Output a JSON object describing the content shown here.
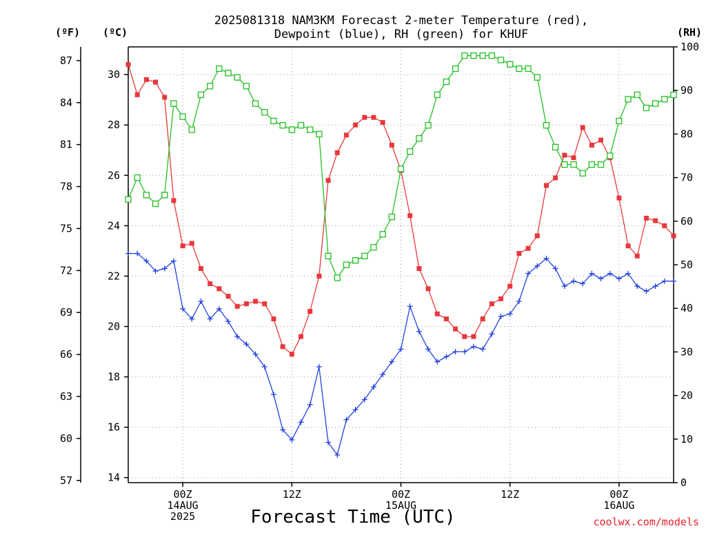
{
  "chart_data": {
    "type": "line",
    "title_line1": "2025081318 NAM3KM Forecast 2-meter Temperature (red),",
    "title_line2": "Dewpoint (blue), RH (green) for KHUF",
    "xlabel": "Forecast Time (UTC)",
    "credit": "coolwx.com/models",
    "unit_f": "(ºF)",
    "unit_c": "(ºC)",
    "unit_rh": "(RH)",
    "x_start_hour": 18,
    "x_end_hour": 78,
    "x_ticks": [
      {
        "hour": 24,
        "lines": [
          "00Z",
          "14AUG",
          "2025"
        ]
      },
      {
        "hour": 36,
        "lines": [
          "12Z"
        ]
      },
      {
        "hour": 48,
        "lines": [
          "00Z",
          "15AUG"
        ]
      },
      {
        "hour": 60,
        "lines": [
          "12Z"
        ]
      },
      {
        "hour": 72,
        "lines": [
          "00Z",
          "16AUG"
        ]
      }
    ],
    "y_celsius": {
      "min": 13.8,
      "max": 31.1,
      "ticks": [
        14,
        16,
        18,
        20,
        22,
        24,
        26,
        28,
        30
      ]
    },
    "y_fahrenheit": {
      "ticks": [
        57,
        60,
        63,
        66,
        69,
        72,
        75,
        78,
        81,
        84,
        87
      ]
    },
    "y_rh": {
      "min": 0,
      "max": 100,
      "ticks": [
        0,
        10,
        20,
        30,
        40,
        50,
        60,
        70,
        80,
        90,
        100
      ]
    },
    "series": [
      {
        "name": "Temperature",
        "color": "#e8383c",
        "axis": "celsius",
        "marker": "filled-square",
        "x": [
          18,
          19,
          20,
          21,
          22,
          23,
          24,
          25,
          26,
          27,
          28,
          29,
          30,
          31,
          32,
          33,
          34,
          35,
          36,
          37,
          38,
          39,
          40,
          41,
          42,
          43,
          44,
          45,
          46,
          47,
          48,
          49,
          50,
          51,
          52,
          53,
          54,
          55,
          56,
          57,
          58,
          59,
          60,
          61,
          62,
          63,
          64,
          65,
          66,
          67,
          68,
          69,
          70,
          71,
          72,
          73,
          74,
          75,
          76,
          77,
          78
        ],
        "values": [
          30.4,
          29.2,
          29.8,
          29.7,
          29.1,
          25.0,
          23.2,
          23.3,
          22.3,
          21.7,
          21.5,
          21.2,
          20.8,
          20.9,
          21.0,
          20.9,
          20.3,
          19.2,
          18.9,
          19.6,
          20.6,
          22.0,
          25.8,
          26.9,
          27.6,
          28.0,
          28.3,
          28.3,
          28.1,
          27.2,
          26.2,
          24.4,
          22.3,
          21.5,
          20.5,
          20.3,
          19.9,
          19.6,
          19.6,
          20.3,
          20.9,
          21.1,
          21.6,
          22.9,
          23.1,
          23.6,
          25.6,
          25.9,
          26.8,
          26.7,
          27.9,
          27.2,
          27.4,
          26.7,
          25.1,
          23.2,
          22.8,
          24.3,
          24.2,
          24.0,
          23.6
        ]
      },
      {
        "name": "Dewpoint",
        "color": "#2040e0",
        "axis": "celsius",
        "marker": "plus",
        "x": [
          18,
          19,
          20,
          21,
          22,
          23,
          24,
          25,
          26,
          27,
          28,
          29,
          30,
          31,
          32,
          33,
          34,
          35,
          36,
          37,
          38,
          39,
          40,
          41,
          42,
          43,
          44,
          45,
          46,
          47,
          48,
          49,
          50,
          51,
          52,
          53,
          54,
          55,
          56,
          57,
          58,
          59,
          60,
          61,
          62,
          63,
          64,
          65,
          66,
          67,
          68,
          69,
          70,
          71,
          72,
          73,
          74,
          75,
          76,
          77,
          78
        ],
        "values": [
          22.9,
          22.9,
          22.6,
          22.2,
          22.3,
          22.6,
          20.7,
          20.3,
          21.0,
          20.3,
          20.7,
          20.2,
          19.6,
          19.3,
          18.9,
          18.4,
          17.3,
          15.9,
          15.5,
          16.2,
          16.9,
          18.4,
          15.4,
          14.9,
          16.3,
          16.7,
          17.1,
          17.6,
          18.1,
          18.6,
          19.1,
          20.8,
          19.8,
          19.1,
          18.6,
          18.8,
          19.0,
          19.0,
          19.2,
          19.1,
          19.7,
          20.4,
          20.5,
          21.0,
          22.1,
          22.4,
          22.7,
          22.3,
          21.6,
          21.8,
          21.7,
          22.1,
          21.9,
          22.1,
          21.9,
          22.1,
          21.6,
          21.4,
          21.6,
          21.8,
          21.8
        ]
      },
      {
        "name": "RH",
        "color": "#20c020",
        "axis": "rh",
        "marker": "open-square",
        "x": [
          18,
          19,
          20,
          21,
          22,
          23,
          24,
          25,
          26,
          27,
          28,
          29,
          30,
          31,
          32,
          33,
          34,
          35,
          36,
          37,
          38,
          39,
          40,
          41,
          42,
          43,
          44,
          45,
          46,
          47,
          48,
          49,
          50,
          51,
          52,
          53,
          54,
          55,
          56,
          57,
          58,
          59,
          60,
          61,
          62,
          63,
          64,
          65,
          66,
          67,
          68,
          69,
          70,
          71,
          72,
          73,
          74,
          75,
          76,
          77,
          78
        ],
        "values": [
          65,
          70,
          66,
          64,
          66,
          87,
          84,
          81,
          89,
          91,
          95,
          94,
          93,
          91,
          87,
          85,
          83,
          82,
          81,
          82,
          81,
          80,
          52,
          47,
          50,
          51,
          52,
          54,
          57,
          61,
          72,
          76,
          79,
          82,
          89,
          92,
          95,
          98,
          98,
          98,
          98,
          97,
          96,
          95,
          95,
          93,
          82,
          77,
          73,
          73,
          71,
          73,
          73,
          75,
          83,
          88,
          89,
          86,
          87,
          88,
          89
        ]
      }
    ]
  }
}
